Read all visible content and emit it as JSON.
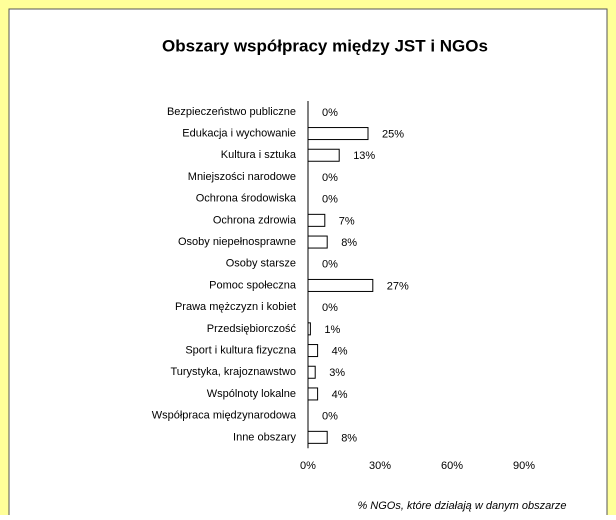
{
  "chart_data": {
    "type": "hbar",
    "title": "Obszary współpracy między JST i NGOs",
    "x_label": "% NGOs, które działają w danym obszarze",
    "categories": [
      "Bezpieczeństwo publiczne",
      "Edukacja i wychowanie",
      "Kultura i sztuka",
      "Mniejszości narodowe",
      "Ochrona środowiska",
      "Ochrona zdrowia",
      "Osoby niepełnosprawne",
      "Osoby starsze",
      "Pomoc społeczna",
      "Prawa mężczyzn i kobiet",
      "Przedsiębiorczość",
      "Sport i kultura fizyczna",
      "Turystyka, krajoznawstwo",
      "Wspólnoty lokalne",
      "Współpraca międzynarodowa",
      "Inne obszary"
    ],
    "values": [
      0,
      25,
      13,
      0,
      0,
      7,
      8,
      0,
      27,
      0,
      1,
      4,
      3,
      4,
      0,
      8
    ],
    "value_labels": [
      "0%",
      "25%",
      "13%",
      "0%",
      "0%",
      "7%",
      "8%",
      "0%",
      "27%",
      "0%",
      "1%",
      "4%",
      "3%",
      "4%",
      "0%",
      "8%"
    ],
    "color": "#ffffff",
    "xlim": [
      0,
      100
    ],
    "xticks": [
      {
        "value": 0,
        "label": "0%"
      },
      {
        "value": 30,
        "label": "30%"
      },
      {
        "value": 60,
        "label": "60%"
      },
      {
        "value": 90,
        "label": "90%"
      }
    ]
  }
}
